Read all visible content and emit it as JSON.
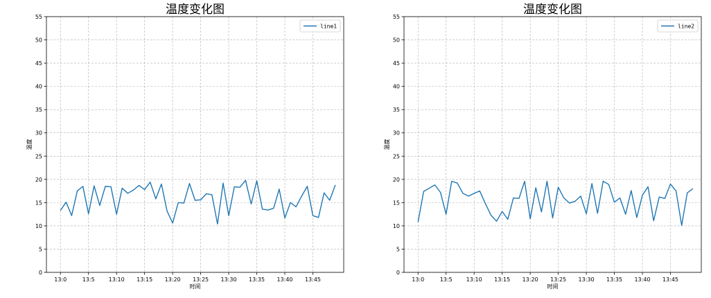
{
  "chart_data": [
    {
      "type": "line",
      "title": "温度变化图",
      "xlabel": "时间",
      "ylabel": "温度",
      "ylim": [
        0,
        55
      ],
      "yticks": [
        0,
        5,
        10,
        15,
        20,
        25,
        30,
        35,
        40,
        45,
        50,
        55
      ],
      "xlim": [
        -2.5,
        50.5
      ],
      "xticks": [
        0,
        5,
        10,
        15,
        20,
        25,
        30,
        35,
        40,
        45
      ],
      "xtick_labels": [
        "13:0",
        "13:5",
        "13:10",
        "13:15",
        "13:20",
        "13:25",
        "13:30",
        "13:35",
        "13:40",
        "13:45"
      ],
      "grid": true,
      "legend_position": "top-right",
      "series": [
        {
          "name": "line1",
          "color": "#1f77b4",
          "x": [
            0,
            1,
            2,
            3,
            4,
            5,
            6,
            7,
            8,
            9,
            10,
            11,
            12,
            13,
            14,
            15,
            16,
            17,
            18,
            19,
            20,
            21,
            22,
            23,
            24,
            25,
            26,
            27,
            28,
            29,
            30,
            31,
            32,
            33,
            34,
            35,
            36,
            37,
            38,
            39,
            40,
            41,
            42,
            43,
            44,
            45,
            46,
            47,
            48,
            49
          ],
          "values": [
            13.3,
            15.1,
            12.2,
            17.5,
            18.5,
            12.6,
            18.6,
            14.4,
            18.5,
            18.4,
            12.5,
            18.1,
            17.0,
            17.7,
            18.7,
            17.8,
            19.4,
            15.8,
            19.0,
            13.2,
            10.6,
            15.0,
            14.9,
            19.1,
            15.5,
            15.6,
            16.9,
            16.7,
            10.4,
            19.2,
            12.2,
            18.4,
            18.3,
            19.8,
            14.7,
            19.7,
            13.6,
            13.4,
            13.8,
            17.9,
            11.7,
            15.0,
            14.1,
            16.4,
            18.5,
            12.2,
            11.8,
            17.1,
            15.5,
            18.8
          ]
        }
      ]
    },
    {
      "type": "line",
      "title": "温度变化图",
      "xlabel": "时间",
      "ylabel": "温度",
      "ylim": [
        0,
        55
      ],
      "yticks": [
        0,
        5,
        10,
        15,
        20,
        25,
        30,
        35,
        40,
        45,
        50,
        55
      ],
      "xlim": [
        -2.5,
        50.5
      ],
      "xticks": [
        0,
        5,
        10,
        15,
        20,
        25,
        30,
        35,
        40,
        45
      ],
      "xtick_labels": [
        "13:0",
        "13:5",
        "13:10",
        "13:15",
        "13:20",
        "13:25",
        "13:30",
        "13:35",
        "13:40",
        "13:45"
      ],
      "grid": true,
      "legend_position": "top-right",
      "series": [
        {
          "name": "line2",
          "color": "#1f77b4",
          "x": [
            0,
            1,
            2,
            3,
            4,
            5,
            6,
            7,
            8,
            9,
            10,
            11,
            12,
            13,
            14,
            15,
            16,
            17,
            18,
            19,
            20,
            21,
            22,
            23,
            24,
            25,
            26,
            27,
            28,
            29,
            30,
            31,
            32,
            33,
            34,
            35,
            36,
            37,
            38,
            39,
            40,
            41,
            42,
            43,
            44,
            45,
            46,
            47,
            48,
            49
          ],
          "values": [
            10.8,
            17.4,
            18.1,
            18.8,
            17.2,
            12.5,
            19.6,
            19.2,
            17.0,
            16.4,
            17.0,
            17.5,
            14.8,
            12.3,
            11.0,
            13.1,
            11.4,
            16.0,
            15.9,
            19.6,
            11.5,
            18.2,
            13.0,
            19.6,
            11.7,
            18.3,
            16.0,
            14.9,
            15.3,
            16.4,
            12.6,
            19.1,
            12.7,
            19.6,
            18.9,
            15.1,
            16.0,
            12.5,
            17.6,
            11.8,
            16.6,
            18.4,
            11.1,
            16.2,
            15.9,
            19.0,
            17.5,
            10.1,
            17.1,
            18.0
          ]
        }
      ]
    }
  ]
}
